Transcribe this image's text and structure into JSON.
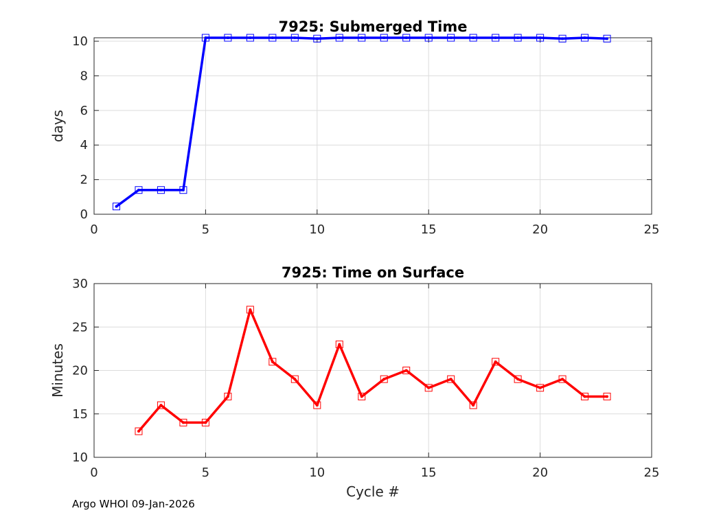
{
  "footer": "Argo WHOI 09-Jan-2026",
  "chart_data": [
    {
      "type": "line",
      "title": "7925: Submerged Time",
      "xlabel": "",
      "ylabel": "days",
      "xlim": [
        0,
        25
      ],
      "ylim": [
        0,
        10.2
      ],
      "xticks": [
        0,
        5,
        10,
        15,
        20,
        25
      ],
      "yticks": [
        0,
        2,
        4,
        6,
        8,
        10
      ],
      "grid": true,
      "line_color": "#0000ff",
      "marker": "square",
      "series": [
        {
          "x": [
            1,
            2,
            3,
            4,
            5,
            6,
            7,
            8,
            9,
            10,
            11,
            12,
            13,
            14,
            15,
            16,
            17,
            18,
            19,
            20,
            21,
            22,
            23
          ],
          "y": [
            0.45,
            1.4,
            1.4,
            1.4,
            10.2,
            10.2,
            10.2,
            10.2,
            10.2,
            10.15,
            10.2,
            10.2,
            10.2,
            10.2,
            10.2,
            10.2,
            10.2,
            10.2,
            10.2,
            10.2,
            10.15,
            10.2,
            10.15
          ]
        }
      ]
    },
    {
      "type": "line",
      "title": "7925: Time on Surface",
      "xlabel": "Cycle #",
      "ylabel": "Minutes",
      "xlim": [
        0,
        25
      ],
      "ylim": [
        10,
        30
      ],
      "xticks": [
        0,
        5,
        10,
        15,
        20,
        25
      ],
      "yticks": [
        10,
        15,
        20,
        25,
        30
      ],
      "grid": true,
      "line_color": "#ff0000",
      "marker": "square",
      "series": [
        {
          "x": [
            2,
            3,
            4,
            5,
            6,
            7,
            8,
            9,
            10,
            11,
            12,
            13,
            14,
            15,
            16,
            17,
            18,
            19,
            20,
            21,
            22,
            23
          ],
          "y": [
            13,
            16,
            14,
            14,
            17,
            27,
            21,
            19,
            16,
            23,
            17,
            19,
            20,
            18,
            19,
            16,
            21,
            19,
            18,
            19,
            17,
            17
          ]
        }
      ]
    }
  ]
}
